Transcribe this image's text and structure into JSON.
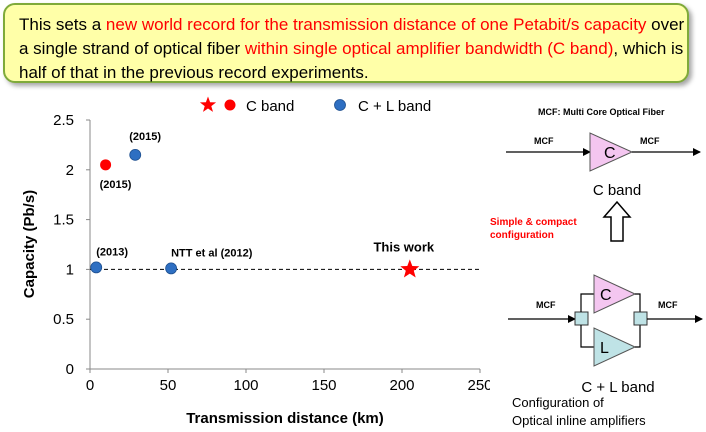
{
  "headline": {
    "part1": "This sets a ",
    "highlight1": "new world record for the transmission distance of one Petabit/s capacity",
    "part2": " over a single strand of optical fiber ",
    "highlight2": "within single optical amplifier bandwidth (C band)",
    "part3": ", which is half of that in the previous record experiments."
  },
  "colors": {
    "c_band": "#ff0000",
    "cl_band": "#2e6fc2",
    "highlight_text": "#ff0000",
    "banner_bg": "#ffffa8",
    "banner_border": "#7faa3a",
    "amp_c": "#f4c6f0",
    "amp_l": "#bfe3e6"
  },
  "chart_data": {
    "type": "scatter",
    "xlabel": "Transmission distance (km)",
    "ylabel": "Capacity (Pb/s)",
    "xlim": [
      0,
      250
    ],
    "ylim": [
      0,
      2.5
    ],
    "xticks": [
      "0",
      "50",
      "100",
      "150",
      "200",
      "250"
    ],
    "yticks": [
      "0",
      "0.5",
      "1",
      "1.5",
      "2",
      "2.5"
    ],
    "legend": [
      {
        "label": "C band",
        "markers": [
          "star",
          "circle"
        ],
        "color": "#ff0000"
      },
      {
        "label": "C + L band",
        "markers": [
          "circle"
        ],
        "color": "#2e6fc2"
      }
    ],
    "reference_line": {
      "y": 1,
      "style": "dashed"
    },
    "series": [
      {
        "band": "C band",
        "color": "#ff0000",
        "points": [
          {
            "x": 10,
            "y": 2.05,
            "marker": "circle",
            "label": "(2015)"
          },
          {
            "x": 205,
            "y": 1.0,
            "marker": "star",
            "label": "This work"
          }
        ]
      },
      {
        "band": "C + L band",
        "color": "#2e6fc2",
        "points": [
          {
            "x": 29,
            "y": 2.15,
            "marker": "circle",
            "label": "(2015)"
          },
          {
            "x": 4,
            "y": 1.02,
            "marker": "circle",
            "label": "(2013)"
          },
          {
            "x": 52,
            "y": 1.01,
            "marker": "circle",
            "label": "NTT et al (2012)"
          }
        ]
      }
    ]
  },
  "diagram": {
    "title": "MCF: Multi Core Optical Fiber",
    "top_in": "MCF",
    "top_out": "MCF",
    "amp_c": "C",
    "top_caption": "C band",
    "arrow_caption_line1": "Simple & compact",
    "arrow_caption_line2": "configuration",
    "bottom_in": "MCF",
    "bottom_out": "MCF",
    "amp_c2": "C",
    "amp_l": "L",
    "bottom_caption": "C + L band",
    "footer_line1": "Configuration of",
    "footer_line2": "Optical inline amplifiers"
  }
}
